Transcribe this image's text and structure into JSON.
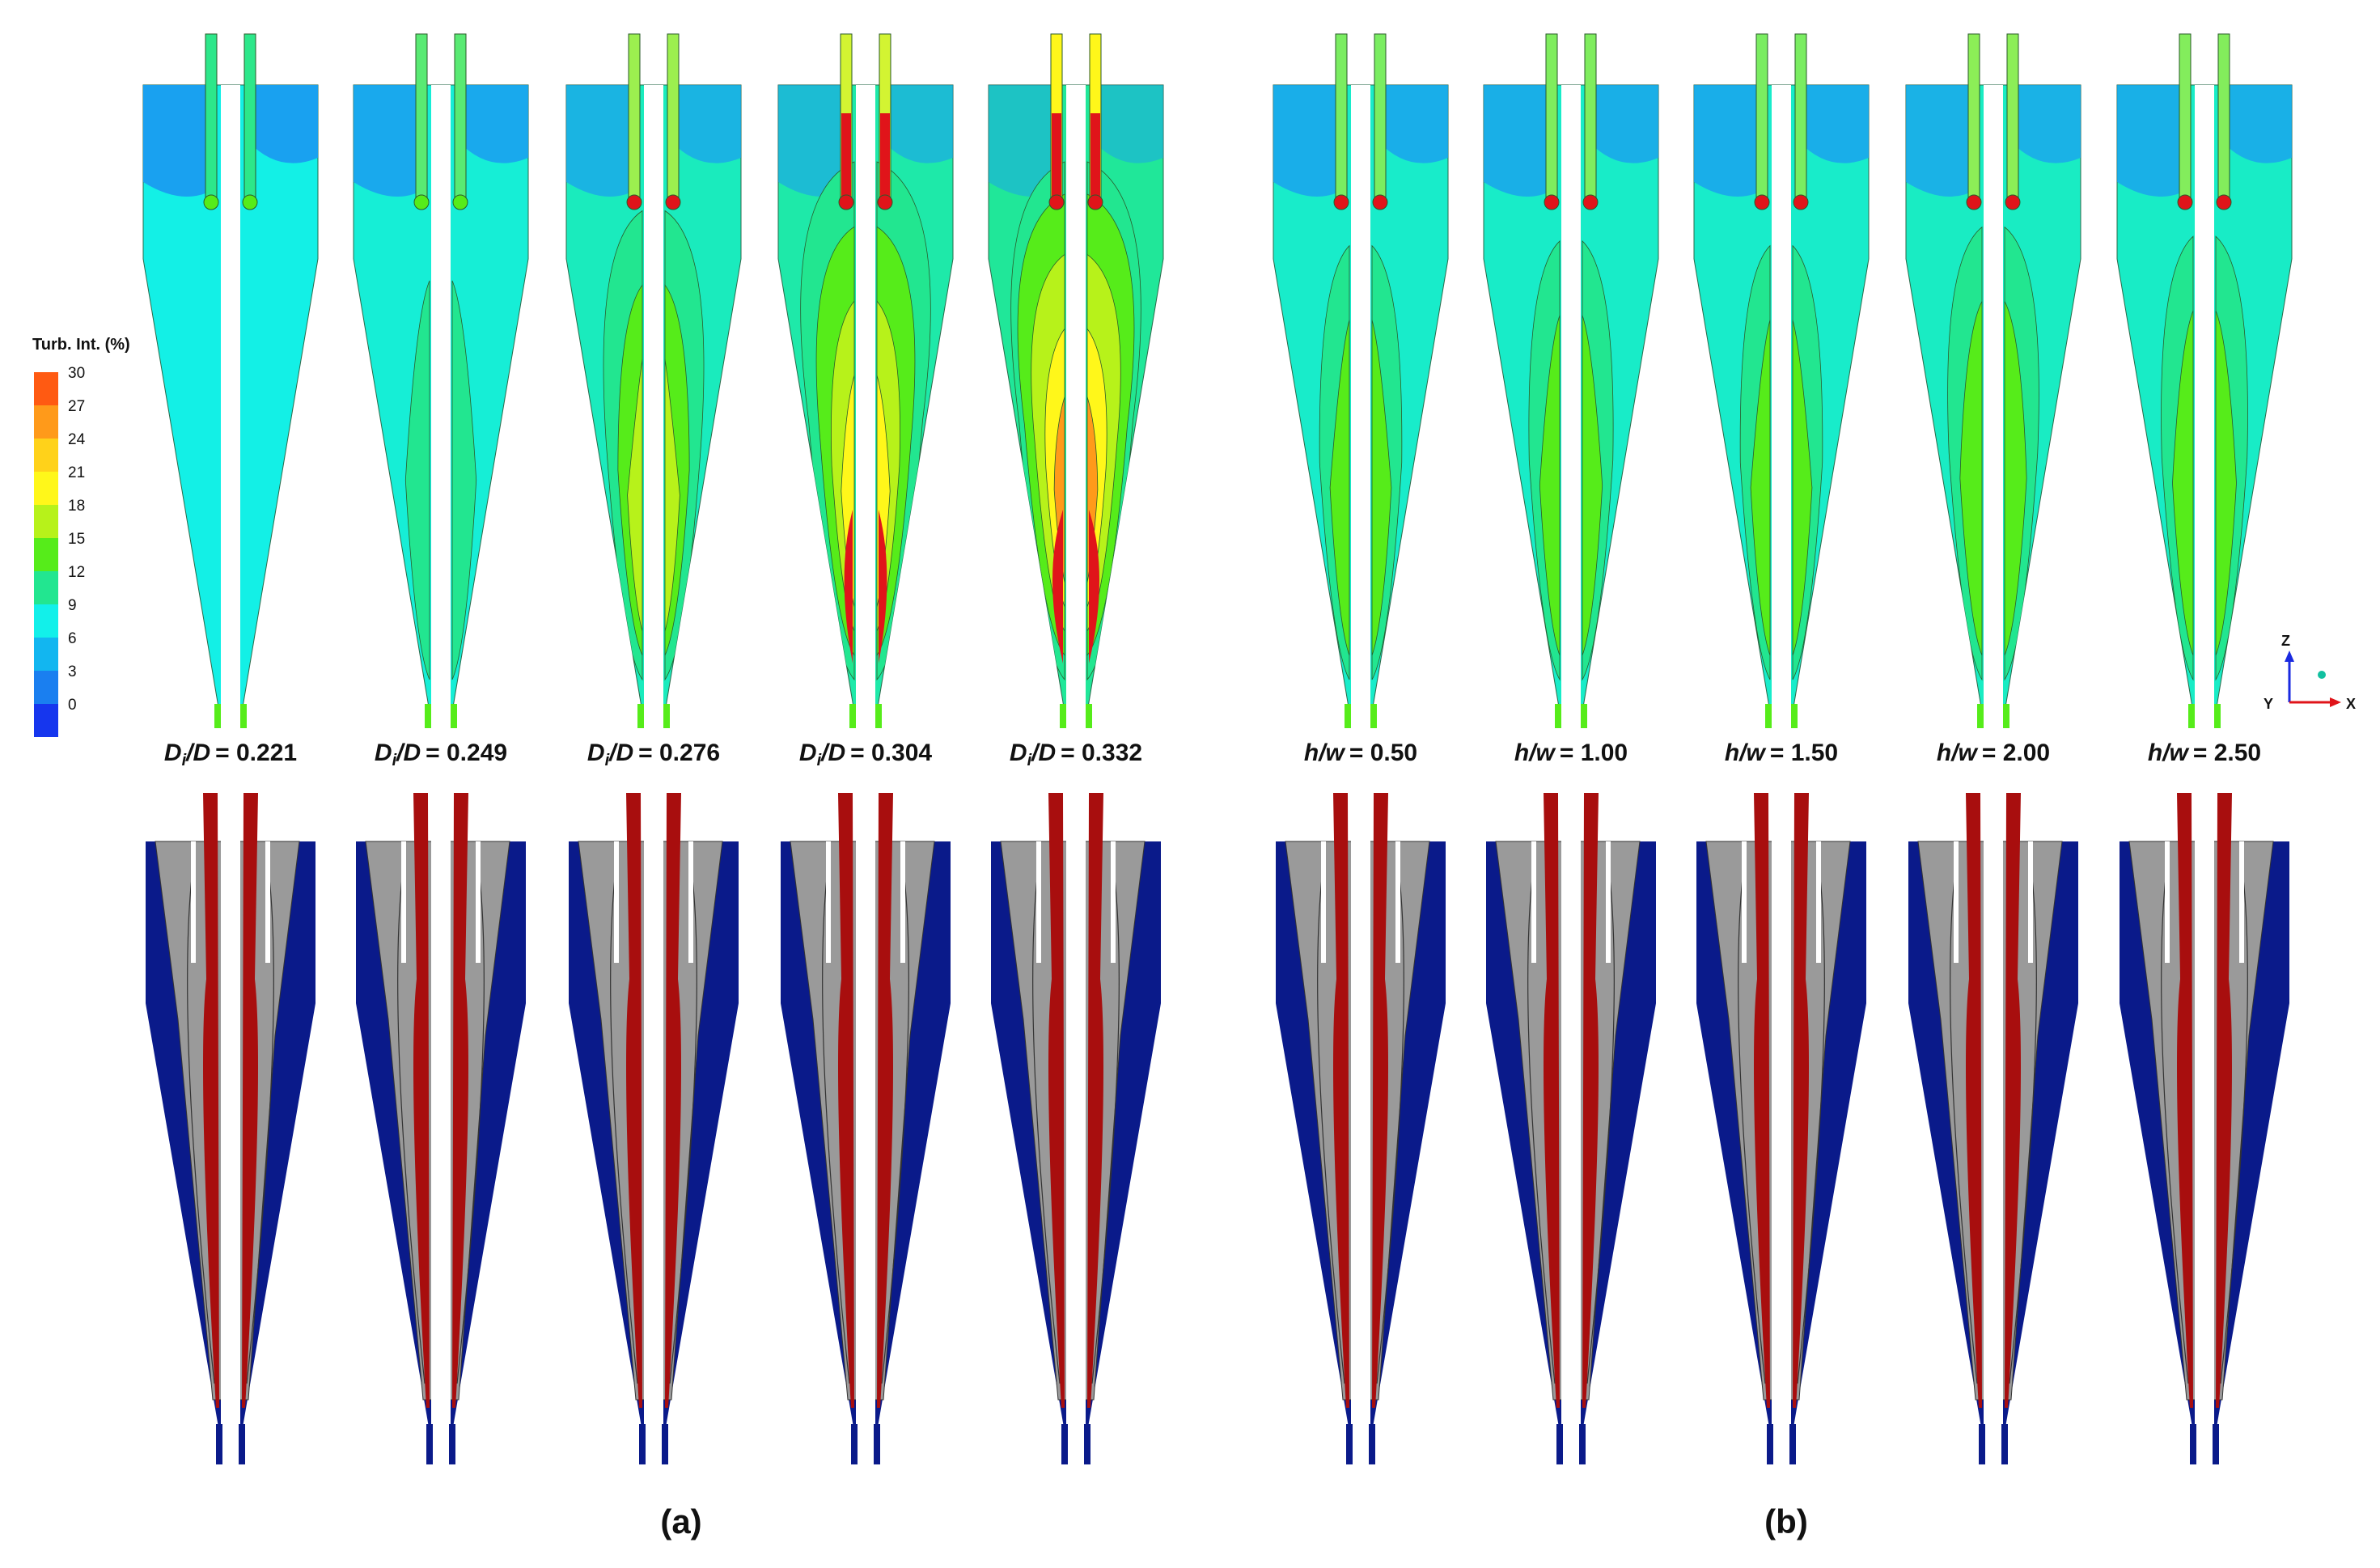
{
  "legend": {
    "title": "Turb. Int. (%)",
    "ticks": [
      "30",
      "27",
      "24",
      "21",
      "18",
      "15",
      "12",
      "9",
      "6",
      "3",
      "0"
    ],
    "colors": [
      "#ff5a12",
      "#ff9a1a",
      "#ffd21a",
      "#fff71a",
      "#b7f21a",
      "#56ec1a",
      "#22e690",
      "#12f0ea",
      "#12b6f0",
      "#1a7ff0",
      "#1636ee"
    ]
  },
  "axes": {
    "z": "Z",
    "y": "Y",
    "x": "X"
  },
  "panels": [
    {
      "id": "a1",
      "var": "D",
      "sub": "i",
      "den": "/D",
      "value": "= 0.221",
      "level": 0.05
    },
    {
      "id": "a2",
      "var": "D",
      "sub": "i",
      "den": "/D",
      "value": "= 0.249",
      "level": 0.25
    },
    {
      "id": "a3",
      "var": "D",
      "sub": "i",
      "den": "/D",
      "value": "= 0.276",
      "level": 0.55
    },
    {
      "id": "a4",
      "var": "D",
      "sub": "i",
      "den": "/D",
      "value": "= 0.304",
      "level": 0.8
    },
    {
      "id": "a5",
      "var": "D",
      "sub": "i",
      "den": "/D",
      "value": "= 0.332",
      "level": 1.0
    },
    {
      "id": "b1",
      "var": "h",
      "sub": "",
      "den": "/w",
      "value": "= 0.50",
      "level": 0.4
    },
    {
      "id": "b2",
      "var": "h",
      "sub": "",
      "den": "/w",
      "value": "= 1.00",
      "level": 0.42
    },
    {
      "id": "b3",
      "var": "h",
      "sub": "",
      "den": "/w",
      "value": "= 1.50",
      "level": 0.4
    },
    {
      "id": "b4",
      "var": "h",
      "sub": "",
      "den": "/w",
      "value": "= 2.00",
      "level": 0.48
    },
    {
      "id": "b5",
      "var": "h",
      "sub": "",
      "den": "/w",
      "value": "= 2.50",
      "level": 0.44
    }
  ],
  "group_labels": [
    "(a)",
    "(b)"
  ],
  "colors": {
    "bg_low": "#12f0ea",
    "bg_low2": "#1a9ff0",
    "green": "#22e690",
    "lime": "#56ec1a",
    "yellow": "#fff71a",
    "orange": "#ff9a1a",
    "red": "#e0141a",
    "grey": "#9a9a9a",
    "navy": "#0a1a8a",
    "darkred": "#a80e0e"
  }
}
